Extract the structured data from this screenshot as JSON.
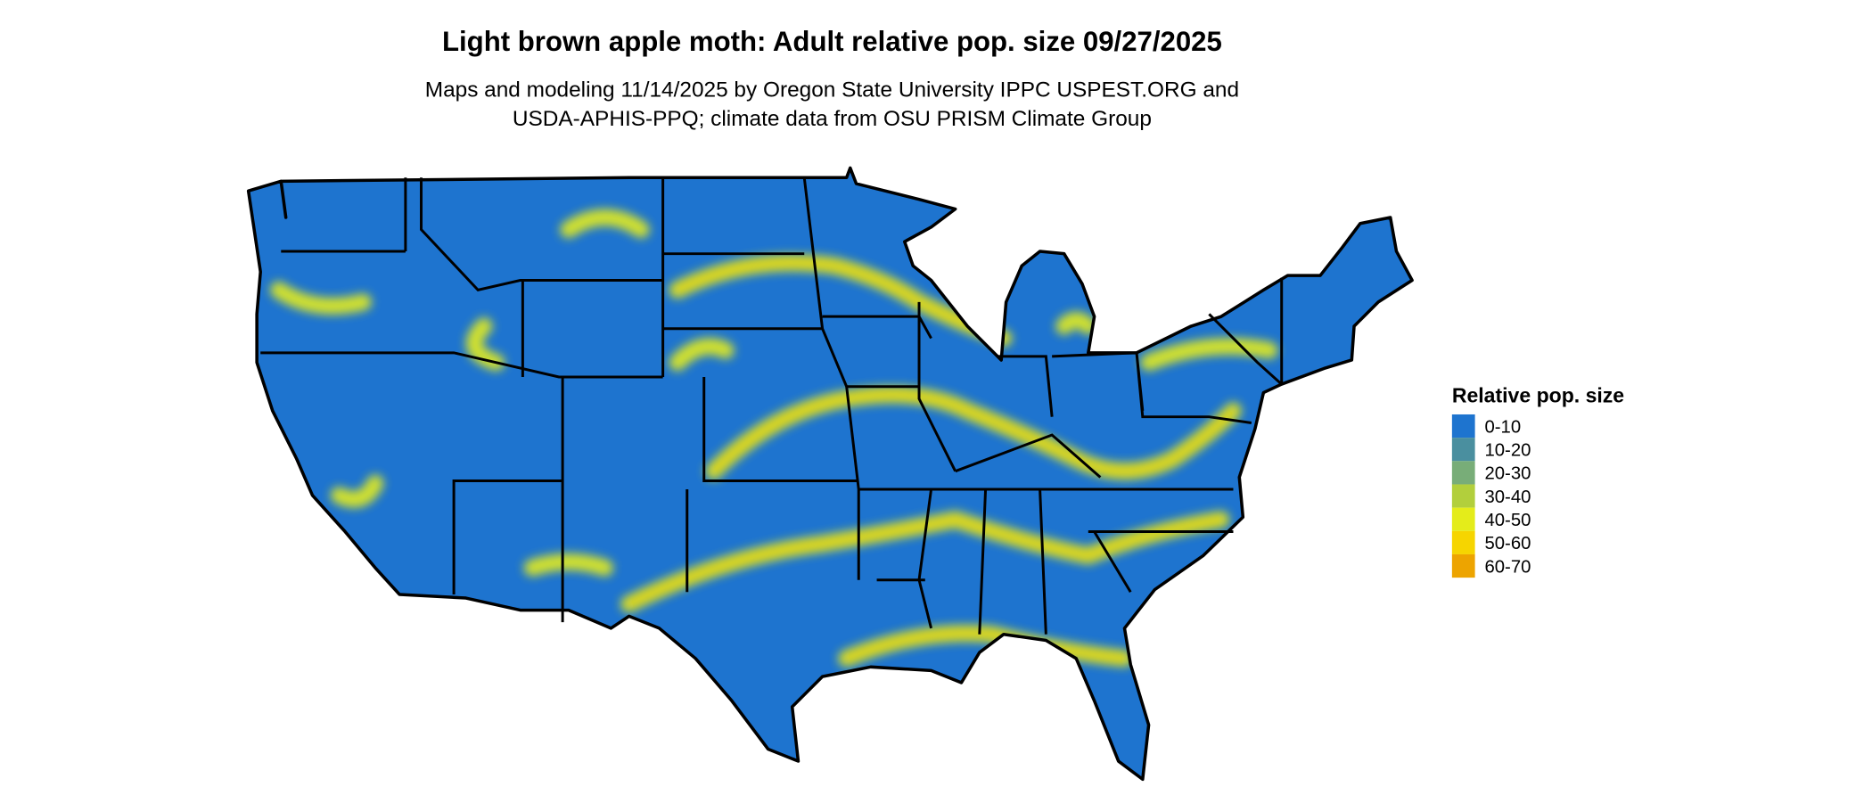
{
  "title": "Light brown apple moth: Adult relative pop. size 09/27/2025",
  "subtitle": [
    "Maps and modeling 11/14/2025 by Oregon State University IPPC USPEST.ORG and",
    "USDA-APHIS-PPQ; climate data from OSU PRISM Climate Group"
  ],
  "legend": {
    "title": "Relative pop. size",
    "items": [
      {
        "label": "0-10",
        "color": "#1e74cf"
      },
      {
        "label": "10-20",
        "color": "#4a8f9f"
      },
      {
        "label": "20-30",
        "color": "#78ad78"
      },
      {
        "label": "30-40",
        "color": "#b2cf3c"
      },
      {
        "label": "40-50",
        "color": "#e4ec1a"
      },
      {
        "label": "50-60",
        "color": "#f6d500"
      },
      {
        "label": "60-70",
        "color": "#eda400"
      }
    ]
  }
}
